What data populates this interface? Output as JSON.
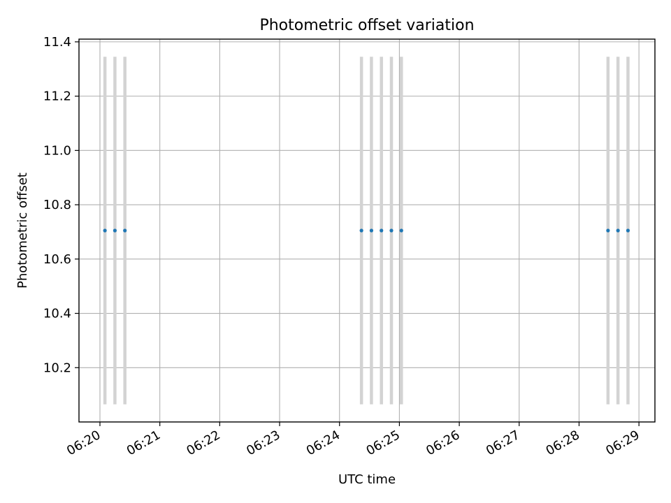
{
  "chart_data": {
    "type": "scatter",
    "title": "Photometric offset variation",
    "xlabel": "UTC time",
    "ylabel": "Photometric offset",
    "x_tick_labels": [
      "06:20",
      "06:21",
      "06:22",
      "06:23",
      "06:24",
      "06:25",
      "06:26",
      "06:27",
      "06:28",
      "06:29"
    ],
    "y_tick_labels": [
      "10.2",
      "10.4",
      "10.6",
      "10.8",
      "11.0",
      "11.2",
      "11.4"
    ],
    "xlim": [
      "06:19:39",
      "06:29:16"
    ],
    "ylim": [
      10.0,
      11.41
    ],
    "grid": true,
    "series": [
      {
        "x": [
          "06:20:05",
          "06:20:15",
          "06:20:25",
          "06:24:22",
          "06:24:32",
          "06:24:42",
          "06:24:52",
          "06:25:02",
          "06:28:29",
          "06:28:39",
          "06:28:49"
        ],
        "y": [
          10.705,
          10.705,
          10.705,
          10.705,
          10.705,
          10.705,
          10.705,
          10.705,
          10.705,
          10.705,
          10.705
        ],
        "yerr": [
          0.64,
          0.64,
          0.64,
          0.64,
          0.64,
          0.64,
          0.64,
          0.64,
          0.64,
          0.64,
          0.64
        ]
      }
    ],
    "colors": {
      "points": "#1f77b4",
      "error_bars": "#d3d3d3",
      "grid": "#b0b0b0",
      "axes": "#000000"
    }
  }
}
